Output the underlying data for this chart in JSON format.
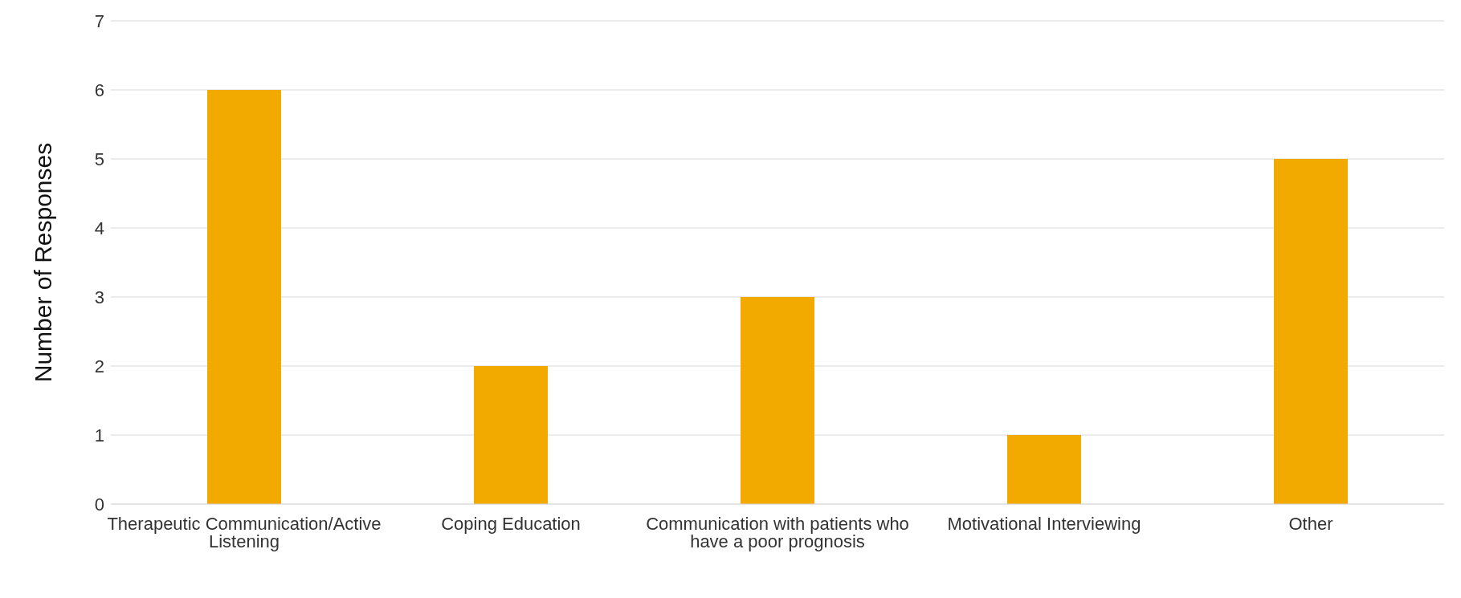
{
  "chart_data": {
    "type": "bar",
    "ylabel": "Number of Responses",
    "categories": [
      "Therapeutic Communication/Active Listening",
      "Coping Education",
      "Communication with patients who have a poor prognosis",
      "Motivational Interviewing",
      "Other"
    ],
    "values": [
      6,
      2,
      3,
      1,
      5
    ],
    "color": "#f2a900",
    "ylim": [
      0,
      7
    ],
    "yticks": [
      0,
      1,
      2,
      3,
      4,
      5,
      6,
      7
    ],
    "grid": "y"
  }
}
